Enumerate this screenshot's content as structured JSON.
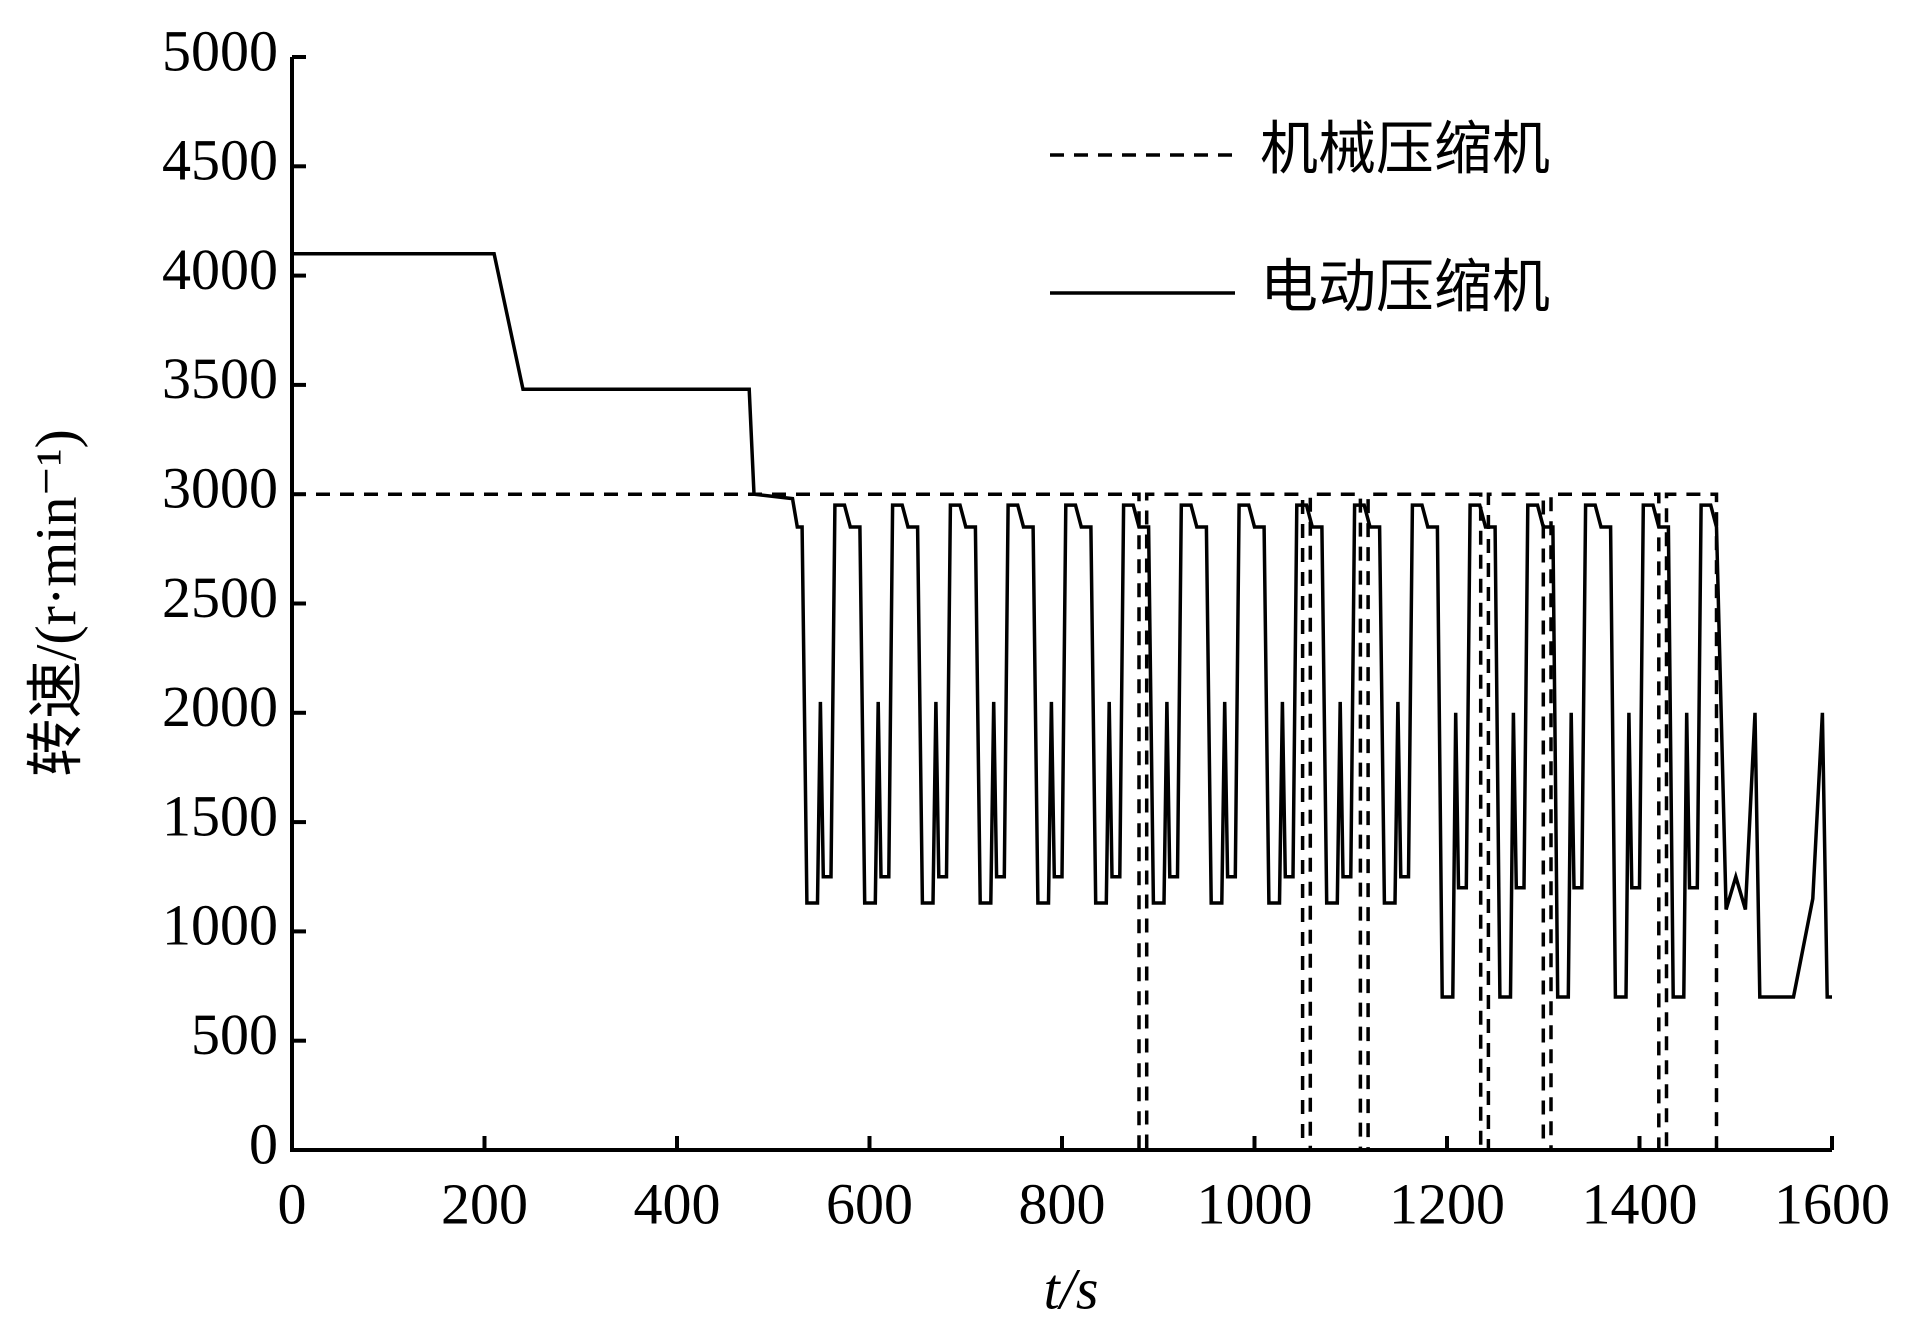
{
  "chart_data": {
    "type": "line",
    "x_label": "t/s",
    "y_label": "转速/(r·min⁻¹)",
    "xlim": [
      0,
      1600
    ],
    "xticks": [
      0,
      200,
      400,
      600,
      800,
      1000,
      1200,
      1400,
      1600
    ],
    "ylim": [
      0,
      5000
    ],
    "yticks": [
      0,
      500,
      1000,
      1500,
      2000,
      2500,
      3000,
      3500,
      4000,
      4500,
      5000
    ],
    "legend": "upper right",
    "series": [
      {
        "name": "机械压缩机",
        "color": "#000000",
        "dash": true,
        "x": [
          0,
          880,
          880,
          888,
          888,
          1050,
          1050,
          1058,
          1058,
          1110,
          1110,
          1118,
          1118,
          1235,
          1235,
          1243,
          1243,
          1300,
          1300,
          1308,
          1308,
          1420,
          1420,
          1428,
          1428,
          1480,
          1480,
          1600
        ],
        "values": [
          3000,
          3000,
          0,
          0,
          3000,
          3000,
          0,
          0,
          3000,
          3000,
          0,
          0,
          3000,
          3000,
          0,
          0,
          3000,
          3000,
          0,
          0,
          3000,
          3000,
          0,
          0,
          3000,
          3000,
          0,
          0
        ]
      },
      {
        "name": "电动压缩机",
        "color": "#000000",
        "dash": false,
        "x": [
          0,
          210,
          240,
          475,
          480,
          520,
          525,
          530,
          535,
          546,
          549,
          552,
          560,
          564,
          574,
          580,
          590,
          595,
          606,
          609,
          612,
          620,
          624,
          634,
          640,
          650,
          655,
          666,
          669,
          672,
          680,
          684,
          694,
          700,
          710,
          715,
          726,
          729,
          732,
          740,
          744,
          754,
          760,
          770,
          775,
          786,
          789,
          792,
          800,
          804,
          814,
          820,
          830,
          835,
          846,
          849,
          852,
          860,
          864,
          874,
          880,
          890,
          895,
          906,
          909,
          912,
          920,
          924,
          934,
          940,
          950,
          955,
          966,
          969,
          972,
          980,
          984,
          994,
          1000,
          1010,
          1015,
          1026,
          1029,
          1032,
          1040,
          1044,
          1054,
          1060,
          1070,
          1075,
          1086,
          1089,
          1092,
          1100,
          1104,
          1114,
          1120,
          1130,
          1135,
          1146,
          1149,
          1152,
          1160,
          1164,
          1174,
          1180,
          1190,
          1195,
          1206,
          1209,
          1212,
          1220,
          1224,
          1234,
          1240,
          1250,
          1255,
          1266,
          1269,
          1272,
          1280,
          1284,
          1294,
          1300,
          1310,
          1315,
          1326,
          1329,
          1332,
          1340,
          1344,
          1354,
          1360,
          1370,
          1375,
          1386,
          1389,
          1392,
          1400,
          1404,
          1414,
          1420,
          1430,
          1435,
          1446,
          1449,
          1452,
          1460,
          1464,
          1474,
          1480,
          1490,
          1500,
          1510,
          1520,
          1525,
          1560,
          1580,
          1590,
          1595,
          1600
        ],
        "values": [
          4100,
          4100,
          3480,
          3480,
          3000,
          2980,
          2850,
          2850,
          1130,
          1130,
          2050,
          1250,
          1250,
          2950,
          2950,
          2850,
          2850,
          1130,
          1130,
          2050,
          1250,
          1250,
          2950,
          2950,
          2850,
          2850,
          1130,
          1130,
          2050,
          1250,
          1250,
          2950,
          2950,
          2850,
          2850,
          1130,
          1130,
          2050,
          1250,
          1250,
          2950,
          2950,
          2850,
          2850,
          1130,
          1130,
          2050,
          1250,
          1250,
          2950,
          2950,
          2850,
          2850,
          1130,
          1130,
          2050,
          1250,
          1250,
          2950,
          2950,
          2850,
          2850,
          1130,
          1130,
          2050,
          1250,
          1250,
          2950,
          2950,
          2850,
          2850,
          1130,
          1130,
          2050,
          1250,
          1250,
          2950,
          2950,
          2850,
          2850,
          1130,
          1130,
          2050,
          1250,
          1250,
          2950,
          2950,
          2850,
          2850,
          1130,
          1130,
          2050,
          1250,
          1250,
          2950,
          2950,
          2850,
          2850,
          1130,
          1130,
          2050,
          1250,
          1250,
          2950,
          2950,
          2850,
          2850,
          700,
          700,
          2000,
          1200,
          1200,
          2950,
          2950,
          2850,
          2850,
          700,
          700,
          2000,
          1200,
          1200,
          2950,
          2950,
          2850,
          2850,
          700,
          700,
          2000,
          1200,
          1200,
          2950,
          2950,
          2850,
          2850,
          700,
          700,
          2000,
          1200,
          1200,
          2950,
          2950,
          2850,
          2850,
          700,
          700,
          2000,
          1200,
          1200,
          2950,
          2950,
          2850,
          1100,
          1250,
          1100,
          2000,
          700,
          700,
          1150,
          2000,
          700,
          700
        ]
      }
    ]
  }
}
